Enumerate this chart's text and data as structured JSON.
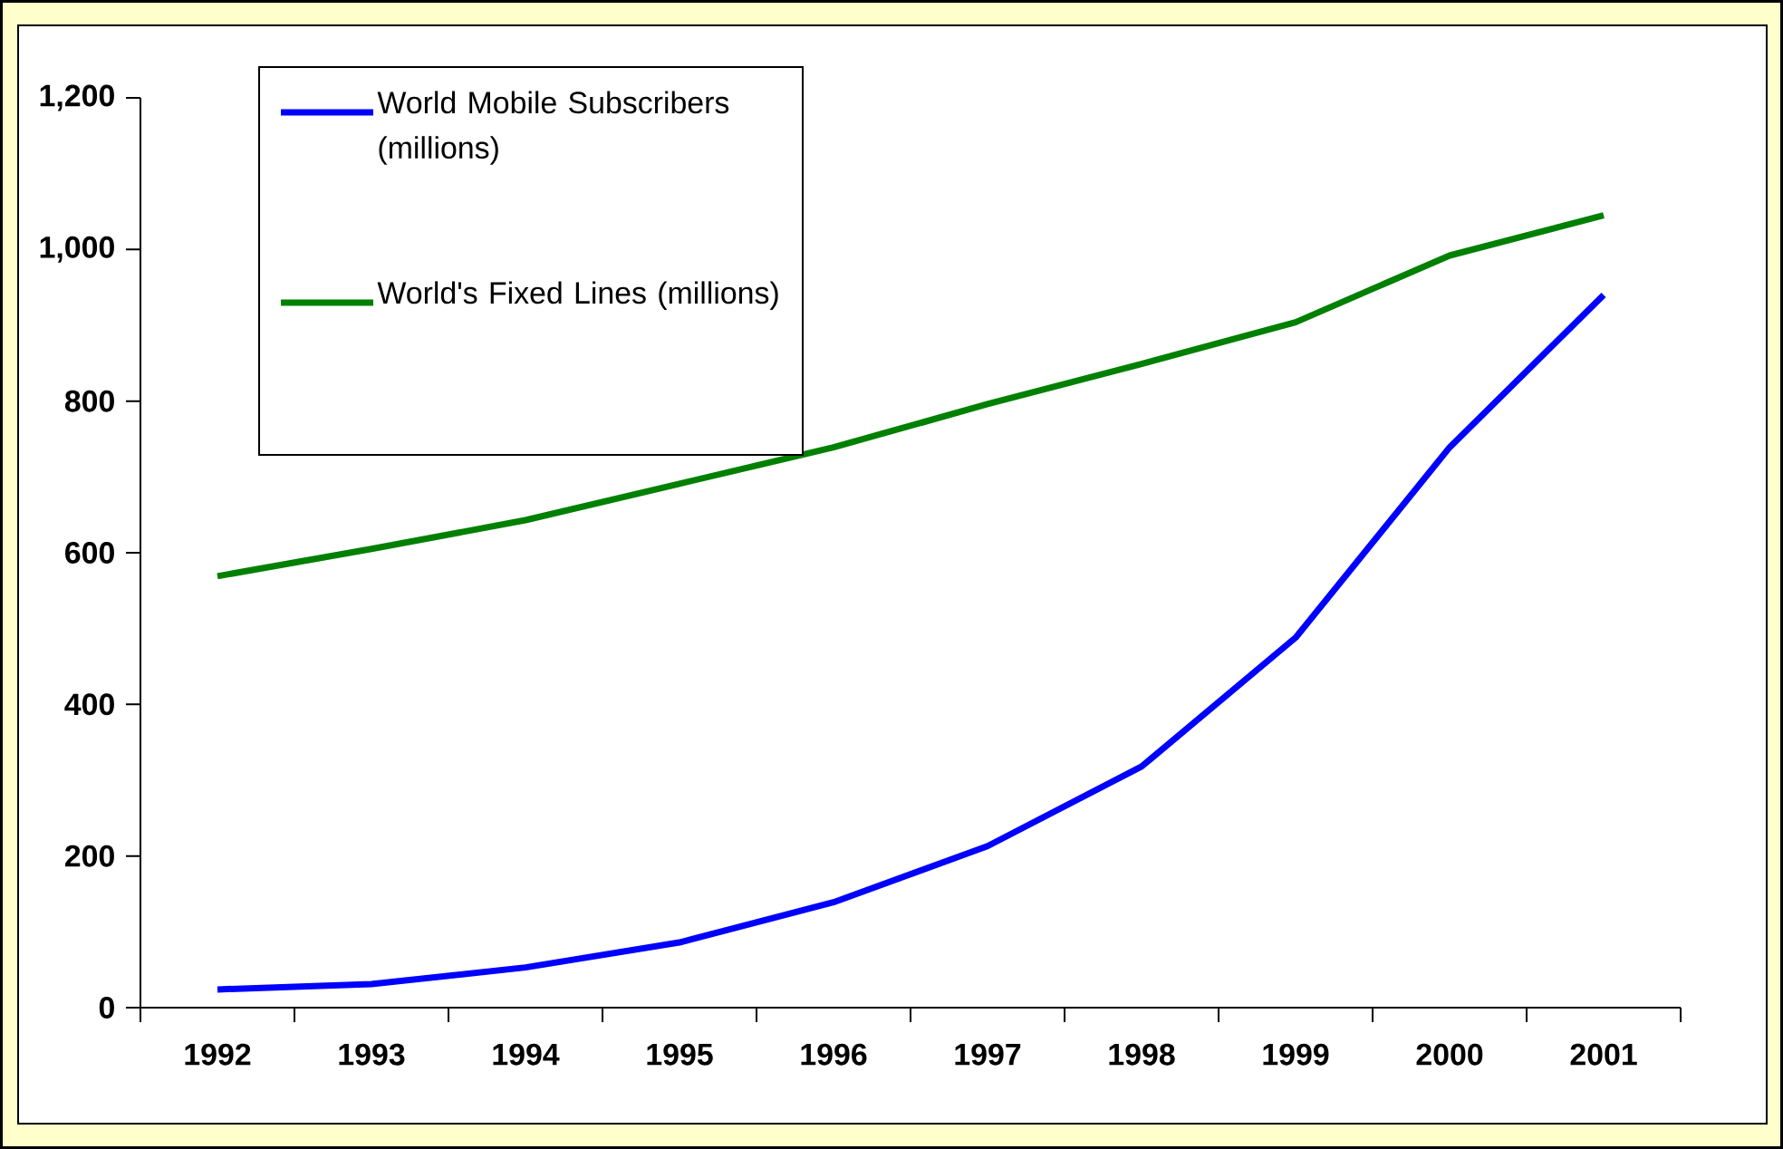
{
  "chart_data": {
    "type": "line",
    "categories": [
      "1992",
      "1993",
      "1994",
      "1995",
      "1996",
      "1997",
      "1998",
      "1999",
      "2000",
      "2001"
    ],
    "series": [
      {
        "name": "World Mobile Subscribers (millions)",
        "color": "#0000ff",
        "values": [
          24,
          31,
          53,
          86,
          139,
          213,
          318,
          488,
          739,
          940
        ]
      },
      {
        "name": "World's Fixed Lines (millions)",
        "color": "#008000",
        "values": [
          569,
          605,
          643,
          691,
          739,
          796,
          849,
          904,
          992,
          1045
        ]
      }
    ],
    "ylim": [
      0,
      1200
    ],
    "yticks": [
      0,
      200,
      400,
      600,
      800,
      {
        "value": 1000,
        "label": "1,000"
      },
      {
        "value": 1200,
        "label": "1,200"
      }
    ],
    "legend": "top left",
    "grid": false,
    "marker": "none",
    "line_style": "solid"
  }
}
